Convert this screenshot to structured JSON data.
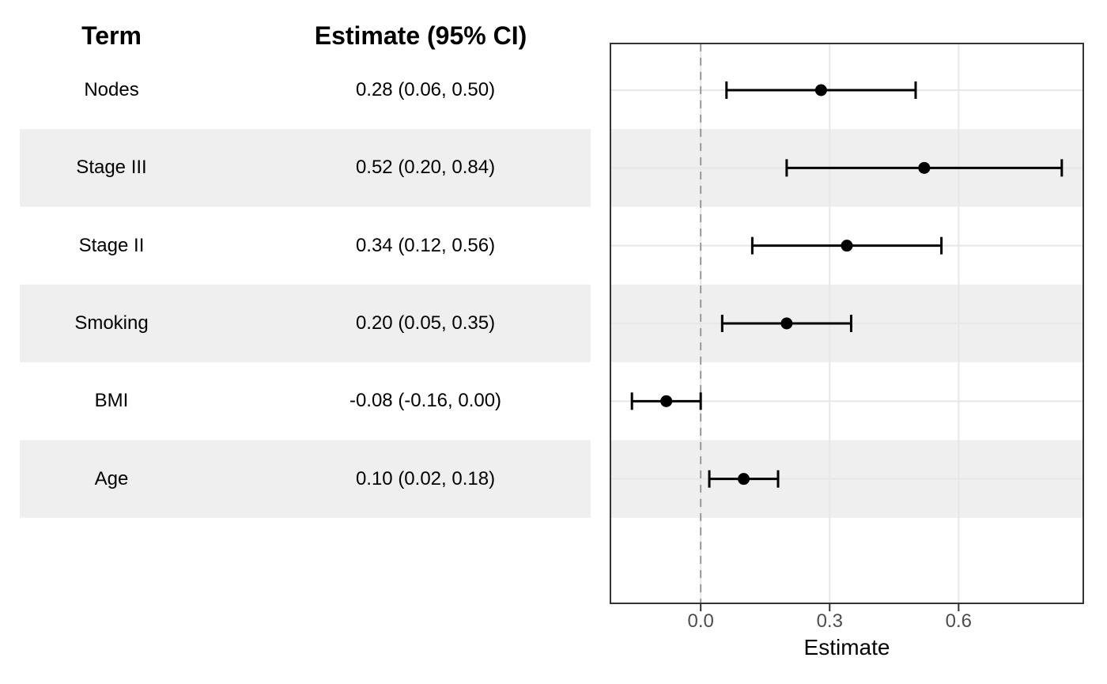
{
  "table": {
    "headers": {
      "term": "Term",
      "estimate": "Estimate (95% CI)"
    }
  },
  "chart_data": {
    "type": "scatter",
    "variant": "forest-plot",
    "xlabel": "Estimate",
    "ylabel": "",
    "xlim": [
      -0.21,
      0.89
    ],
    "zero_line": 0,
    "grid": true,
    "legend": "none",
    "x_ticks": [
      {
        "value": 0.0,
        "label": "0.0"
      },
      {
        "value": 0.3,
        "label": "0.3"
      },
      {
        "value": 0.6,
        "label": "0.6"
      }
    ],
    "rows": [
      {
        "term": "Nodes",
        "estimate": 0.28,
        "ci_low": 0.06,
        "ci_high": 0.5,
        "estimate_label": "0.28 (0.06, 0.50)",
        "striped": false
      },
      {
        "term": "Stage III",
        "estimate": 0.52,
        "ci_low": 0.2,
        "ci_high": 0.84,
        "estimate_label": "0.52 (0.20, 0.84)",
        "striped": true
      },
      {
        "term": "Stage II",
        "estimate": 0.34,
        "ci_low": 0.12,
        "ci_high": 0.56,
        "estimate_label": "0.34 (0.12, 0.56)",
        "striped": false
      },
      {
        "term": "Smoking",
        "estimate": 0.2,
        "ci_low": 0.05,
        "ci_high": 0.35,
        "estimate_label": "0.20 (0.05, 0.35)",
        "striped": true
      },
      {
        "term": "BMI",
        "estimate": -0.08,
        "ci_low": -0.16,
        "ci_high": 0.0,
        "estimate_label": "-0.08 (-0.16, 0.00)",
        "striped": false
      },
      {
        "term": "Age",
        "estimate": 0.1,
        "ci_low": 0.02,
        "ci_high": 0.18,
        "estimate_label": "0.10 (0.02, 0.18)",
        "striped": true
      }
    ],
    "colors": {
      "stripe": "#efefef",
      "grid": "#e7e7e7",
      "panel_border": "#343434",
      "zero_line": "#999999",
      "marker": "#000000",
      "tick_mark": "#333333",
      "tick_label": "#4d4d4d",
      "text": "#000000"
    }
  }
}
